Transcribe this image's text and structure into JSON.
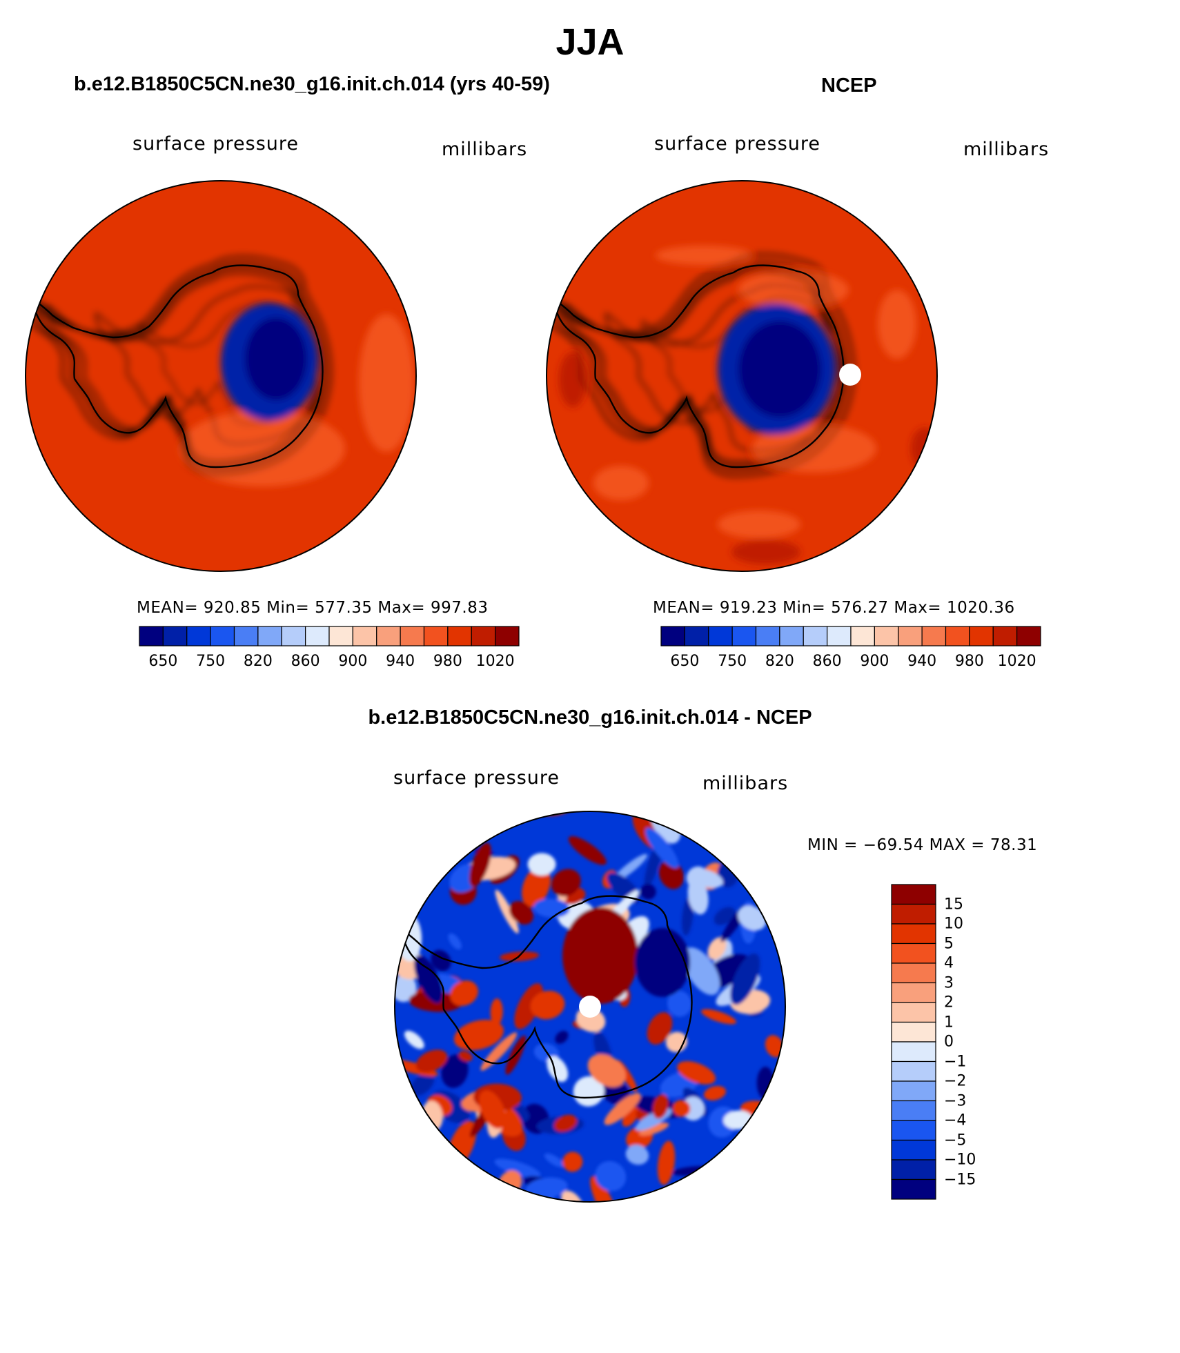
{
  "figure": {
    "title": "JJA"
  },
  "panels": [
    {
      "id": "model",
      "title": "b.e12.B1850C5CN.ne30_g16.init.ch.014 (yrs 40-59)",
      "variable": "surface pressure",
      "units": "millibars",
      "stats": "MEAN= 920.85   Min= 577.35   Max= 997.83"
    },
    {
      "id": "obs",
      "title": "NCEP",
      "variable": "surface pressure",
      "units": "millibars",
      "stats": "MEAN= 919.23   Min= 576.27   Max= 1020.36"
    },
    {
      "id": "diff",
      "title": "b.e12.B1850C5CN.ne30_g16.init.ch.014 - NCEP",
      "variable": "surface pressure",
      "units": "millibars",
      "stats": "MIN = −69.54 MAX =  78.31"
    }
  ],
  "colorbar_abs": {
    "colors": [
      "#00007f",
      "#0020a8",
      "#0038d8",
      "#1a56f0",
      "#4a7ef5",
      "#80a8f8",
      "#b5cdfa",
      "#ddeafc",
      "#fde6d6",
      "#fcc4a8",
      "#f9a07c",
      "#f67a4e",
      "#f2521f",
      "#e23400",
      "#c01d00",
      "#8e0000"
    ],
    "labels": [
      "650",
      "750",
      "820",
      "860",
      "900",
      "940",
      "980",
      "1020"
    ]
  },
  "colorbar_diff": {
    "colors": [
      "#8e0000",
      "#c01d00",
      "#e23400",
      "#f2521f",
      "#f67a4e",
      "#f9a07c",
      "#fcc4a8",
      "#fde6d6",
      "#ddeafc",
      "#b5cdfa",
      "#80a8f8",
      "#4a7ef5",
      "#1a56f0",
      "#0038d8",
      "#0020a8",
      "#00007f"
    ],
    "labels": [
      "15",
      "10",
      "5",
      "4",
      "3",
      "2",
      "1",
      "0",
      "−1",
      "−2",
      "−3",
      "−4",
      "−5",
      "−10",
      "−15"
    ]
  }
}
